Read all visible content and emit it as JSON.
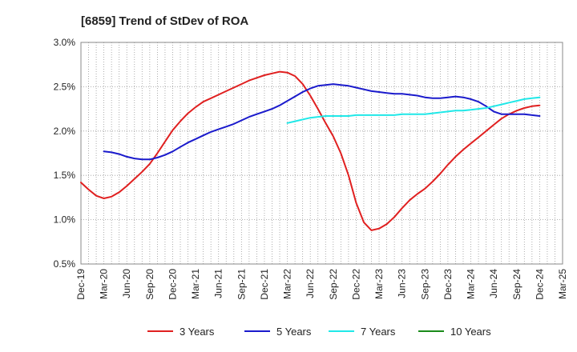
{
  "chart_data": {
    "type": "line",
    "title": "[6859]  Trend of StDev of ROA",
    "xlabel": "",
    "ylabel": "",
    "ylim": [
      0.5,
      3.0
    ],
    "y_ticks": [
      0.5,
      1.0,
      1.5,
      2.0,
      2.5,
      3.0
    ],
    "y_tick_labels": [
      "0.5%",
      "1.0%",
      "1.5%",
      "2.0%",
      "2.5%",
      "3.0%"
    ],
    "x_tick_labels": [
      "Dec-19",
      "Mar-20",
      "Jun-20",
      "Sep-20",
      "Dec-20",
      "Mar-21",
      "Jun-21",
      "Sep-21",
      "Dec-21",
      "Mar-22",
      "Jun-22",
      "Sep-22",
      "Dec-22",
      "Mar-23",
      "Jun-23",
      "Sep-23",
      "Dec-23",
      "Mar-24",
      "Jun-24",
      "Sep-24",
      "Dec-24",
      "Mar-25"
    ],
    "grid": true,
    "legend_position": "bottom",
    "series": [
      {
        "name": "3 Years",
        "color": "#e02020",
        "points": [
          [
            "Dec-19",
            1.42
          ],
          [
            "Jan-20",
            1.34
          ],
          [
            "Feb-20",
            1.27
          ],
          [
            "Mar-20",
            1.24
          ],
          [
            "Apr-20",
            1.26
          ],
          [
            "May-20",
            1.31
          ],
          [
            "Jun-20",
            1.38
          ],
          [
            "Jul-20",
            1.46
          ],
          [
            "Aug-20",
            1.54
          ],
          [
            "Sep-20",
            1.63
          ],
          [
            "Oct-20",
            1.75
          ],
          [
            "Nov-20",
            1.88
          ],
          [
            "Dec-20",
            2.01
          ],
          [
            "Jan-21",
            2.11
          ],
          [
            "Feb-21",
            2.2
          ],
          [
            "Mar-21",
            2.27
          ],
          [
            "Apr-21",
            2.33
          ],
          [
            "May-21",
            2.37
          ],
          [
            "Jun-21",
            2.41
          ],
          [
            "Jul-21",
            2.45
          ],
          [
            "Aug-21",
            2.49
          ],
          [
            "Sep-21",
            2.53
          ],
          [
            "Oct-21",
            2.57
          ],
          [
            "Nov-21",
            2.6
          ],
          [
            "Dec-21",
            2.63
          ],
          [
            "Jan-22",
            2.65
          ],
          [
            "Feb-22",
            2.67
          ],
          [
            "Mar-22",
            2.66
          ],
          [
            "Apr-22",
            2.62
          ],
          [
            "May-22",
            2.53
          ],
          [
            "Jun-22",
            2.4
          ],
          [
            "Jul-22",
            2.25
          ],
          [
            "Aug-22",
            2.09
          ],
          [
            "Sep-22",
            1.94
          ],
          [
            "Oct-22",
            1.75
          ],
          [
            "Nov-22",
            1.5
          ],
          [
            "Dec-22",
            1.19
          ],
          [
            "Jan-23",
            0.97
          ],
          [
            "Feb-23",
            0.88
          ],
          [
            "Mar-23",
            0.9
          ],
          [
            "Apr-23",
            0.95
          ],
          [
            "May-23",
            1.03
          ],
          [
            "Jun-23",
            1.13
          ],
          [
            "Jul-23",
            1.22
          ],
          [
            "Aug-23",
            1.29
          ],
          [
            "Sep-23",
            1.35
          ],
          [
            "Oct-23",
            1.43
          ],
          [
            "Nov-23",
            1.52
          ],
          [
            "Dec-23",
            1.62
          ],
          [
            "Jan-24",
            1.71
          ],
          [
            "Feb-24",
            1.79
          ],
          [
            "Mar-24",
            1.86
          ],
          [
            "Apr-24",
            1.93
          ],
          [
            "May-24",
            2.0
          ],
          [
            "Jun-24",
            2.07
          ],
          [
            "Jul-24",
            2.14
          ],
          [
            "Aug-24",
            2.19
          ],
          [
            "Sep-24",
            2.23
          ],
          [
            "Oct-24",
            2.26
          ],
          [
            "Nov-24",
            2.28
          ],
          [
            "Dec-24",
            2.29
          ]
        ]
      },
      {
        "name": "5 Years",
        "color": "#1a1acc",
        "points": [
          [
            "Mar-20",
            1.77
          ],
          [
            "Apr-20",
            1.76
          ],
          [
            "May-20",
            1.74
          ],
          [
            "Jun-20",
            1.71
          ],
          [
            "Jul-20",
            1.69
          ],
          [
            "Aug-20",
            1.68
          ],
          [
            "Sep-20",
            1.68
          ],
          [
            "Oct-20",
            1.7
          ],
          [
            "Nov-20",
            1.73
          ],
          [
            "Dec-20",
            1.77
          ],
          [
            "Jan-21",
            1.82
          ],
          [
            "Feb-21",
            1.87
          ],
          [
            "Mar-21",
            1.91
          ],
          [
            "Apr-21",
            1.95
          ],
          [
            "May-21",
            1.99
          ],
          [
            "Jun-21",
            2.02
          ],
          [
            "Jul-21",
            2.05
          ],
          [
            "Aug-21",
            2.08
          ],
          [
            "Sep-21",
            2.12
          ],
          [
            "Oct-21",
            2.16
          ],
          [
            "Nov-21",
            2.19
          ],
          [
            "Dec-21",
            2.22
          ],
          [
            "Jan-22",
            2.25
          ],
          [
            "Feb-22",
            2.29
          ],
          [
            "Mar-22",
            2.34
          ],
          [
            "Apr-22",
            2.39
          ],
          [
            "May-22",
            2.44
          ],
          [
            "Jun-22",
            2.48
          ],
          [
            "Jul-22",
            2.51
          ],
          [
            "Aug-22",
            2.52
          ],
          [
            "Sep-22",
            2.53
          ],
          [
            "Oct-22",
            2.52
          ],
          [
            "Nov-22",
            2.51
          ],
          [
            "Dec-22",
            2.49
          ],
          [
            "Jan-23",
            2.47
          ],
          [
            "Feb-23",
            2.45
          ],
          [
            "Mar-23",
            2.44
          ],
          [
            "Apr-23",
            2.43
          ],
          [
            "May-23",
            2.42
          ],
          [
            "Jun-23",
            2.42
          ],
          [
            "Jul-23",
            2.41
          ],
          [
            "Aug-23",
            2.4
          ],
          [
            "Sep-23",
            2.38
          ],
          [
            "Oct-23",
            2.37
          ],
          [
            "Nov-23",
            2.37
          ],
          [
            "Dec-23",
            2.38
          ],
          [
            "Jan-24",
            2.39
          ],
          [
            "Feb-24",
            2.38
          ],
          [
            "Mar-24",
            2.36
          ],
          [
            "Apr-24",
            2.33
          ],
          [
            "May-24",
            2.28
          ],
          [
            "Jun-24",
            2.22
          ],
          [
            "Jul-24",
            2.19
          ],
          [
            "Aug-24",
            2.19
          ],
          [
            "Sep-24",
            2.19
          ],
          [
            "Oct-24",
            2.19
          ],
          [
            "Nov-24",
            2.18
          ],
          [
            "Dec-24",
            2.17
          ]
        ]
      },
      {
        "name": "7 Years",
        "color": "#20e8e8",
        "points": [
          [
            "Mar-22",
            2.09
          ],
          [
            "Apr-22",
            2.11
          ],
          [
            "May-22",
            2.13
          ],
          [
            "Jun-22",
            2.15
          ],
          [
            "Jul-22",
            2.16
          ],
          [
            "Aug-22",
            2.17
          ],
          [
            "Sep-22",
            2.17
          ],
          [
            "Oct-22",
            2.17
          ],
          [
            "Nov-22",
            2.17
          ],
          [
            "Dec-22",
            2.18
          ],
          [
            "Jan-23",
            2.18
          ],
          [
            "Feb-23",
            2.18
          ],
          [
            "Mar-23",
            2.18
          ],
          [
            "Apr-23",
            2.18
          ],
          [
            "May-23",
            2.18
          ],
          [
            "Jun-23",
            2.19
          ],
          [
            "Jul-23",
            2.19
          ],
          [
            "Aug-23",
            2.19
          ],
          [
            "Sep-23",
            2.19
          ],
          [
            "Oct-23",
            2.2
          ],
          [
            "Nov-23",
            2.21
          ],
          [
            "Dec-23",
            2.22
          ],
          [
            "Jan-24",
            2.23
          ],
          [
            "Feb-24",
            2.23
          ],
          [
            "Mar-24",
            2.24
          ],
          [
            "Apr-24",
            2.25
          ],
          [
            "May-24",
            2.26
          ],
          [
            "Jun-24",
            2.28
          ],
          [
            "Jul-24",
            2.3
          ],
          [
            "Aug-24",
            2.32
          ],
          [
            "Sep-24",
            2.34
          ],
          [
            "Oct-24",
            2.36
          ],
          [
            "Nov-24",
            2.37
          ],
          [
            "Dec-24",
            2.38
          ]
        ]
      },
      {
        "name": "10 Years",
        "color": "#1a8a1a",
        "points": []
      }
    ]
  }
}
